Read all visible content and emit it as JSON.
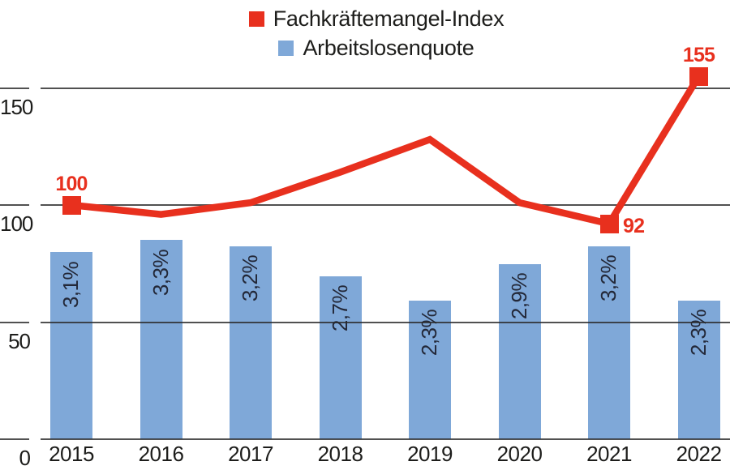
{
  "chart_data": {
    "type": "combo",
    "title": "",
    "categories": [
      "2015",
      "2016",
      "2017",
      "2018",
      "2019",
      "2020",
      "2021",
      "2022"
    ],
    "series": [
      {
        "name": "Fachkräftemangel-Index",
        "type": "line",
        "color": "#e8301e",
        "values": [
          100,
          96,
          101,
          114,
          128,
          101,
          92,
          155
        ],
        "labeled_points": [
          {
            "index": 0,
            "label": "100",
            "position": "above"
          },
          {
            "index": 6,
            "label": "92",
            "position": "right"
          },
          {
            "index": 7,
            "label": "155",
            "position": "above"
          }
        ]
      },
      {
        "name": "Arbeitslosenquote",
        "type": "bar",
        "color": "#7fa8d8",
        "values": [
          3.1,
          3.3,
          3.2,
          2.7,
          2.3,
          2.9,
          3.2,
          2.3
        ],
        "labels": [
          "3,1%",
          "3,3%",
          "3,2%",
          "2,7%",
          "2,3%",
          "2,9%",
          "3,2%",
          "2,3%"
        ]
      }
    ],
    "y_axis": {
      "min": 0,
      "max": 160,
      "ticks": [
        0,
        50,
        100,
        150
      ],
      "tick_labels": [
        "0",
        "50",
        "100",
        "150"
      ]
    },
    "legend_position": "top",
    "grid": true,
    "colors": {
      "line": "#e8301e",
      "bar": "#7fa8d8",
      "grid": "#4a4a4a",
      "axis_text": "#1d1d1b",
      "bar_label_text": "#232838"
    }
  }
}
